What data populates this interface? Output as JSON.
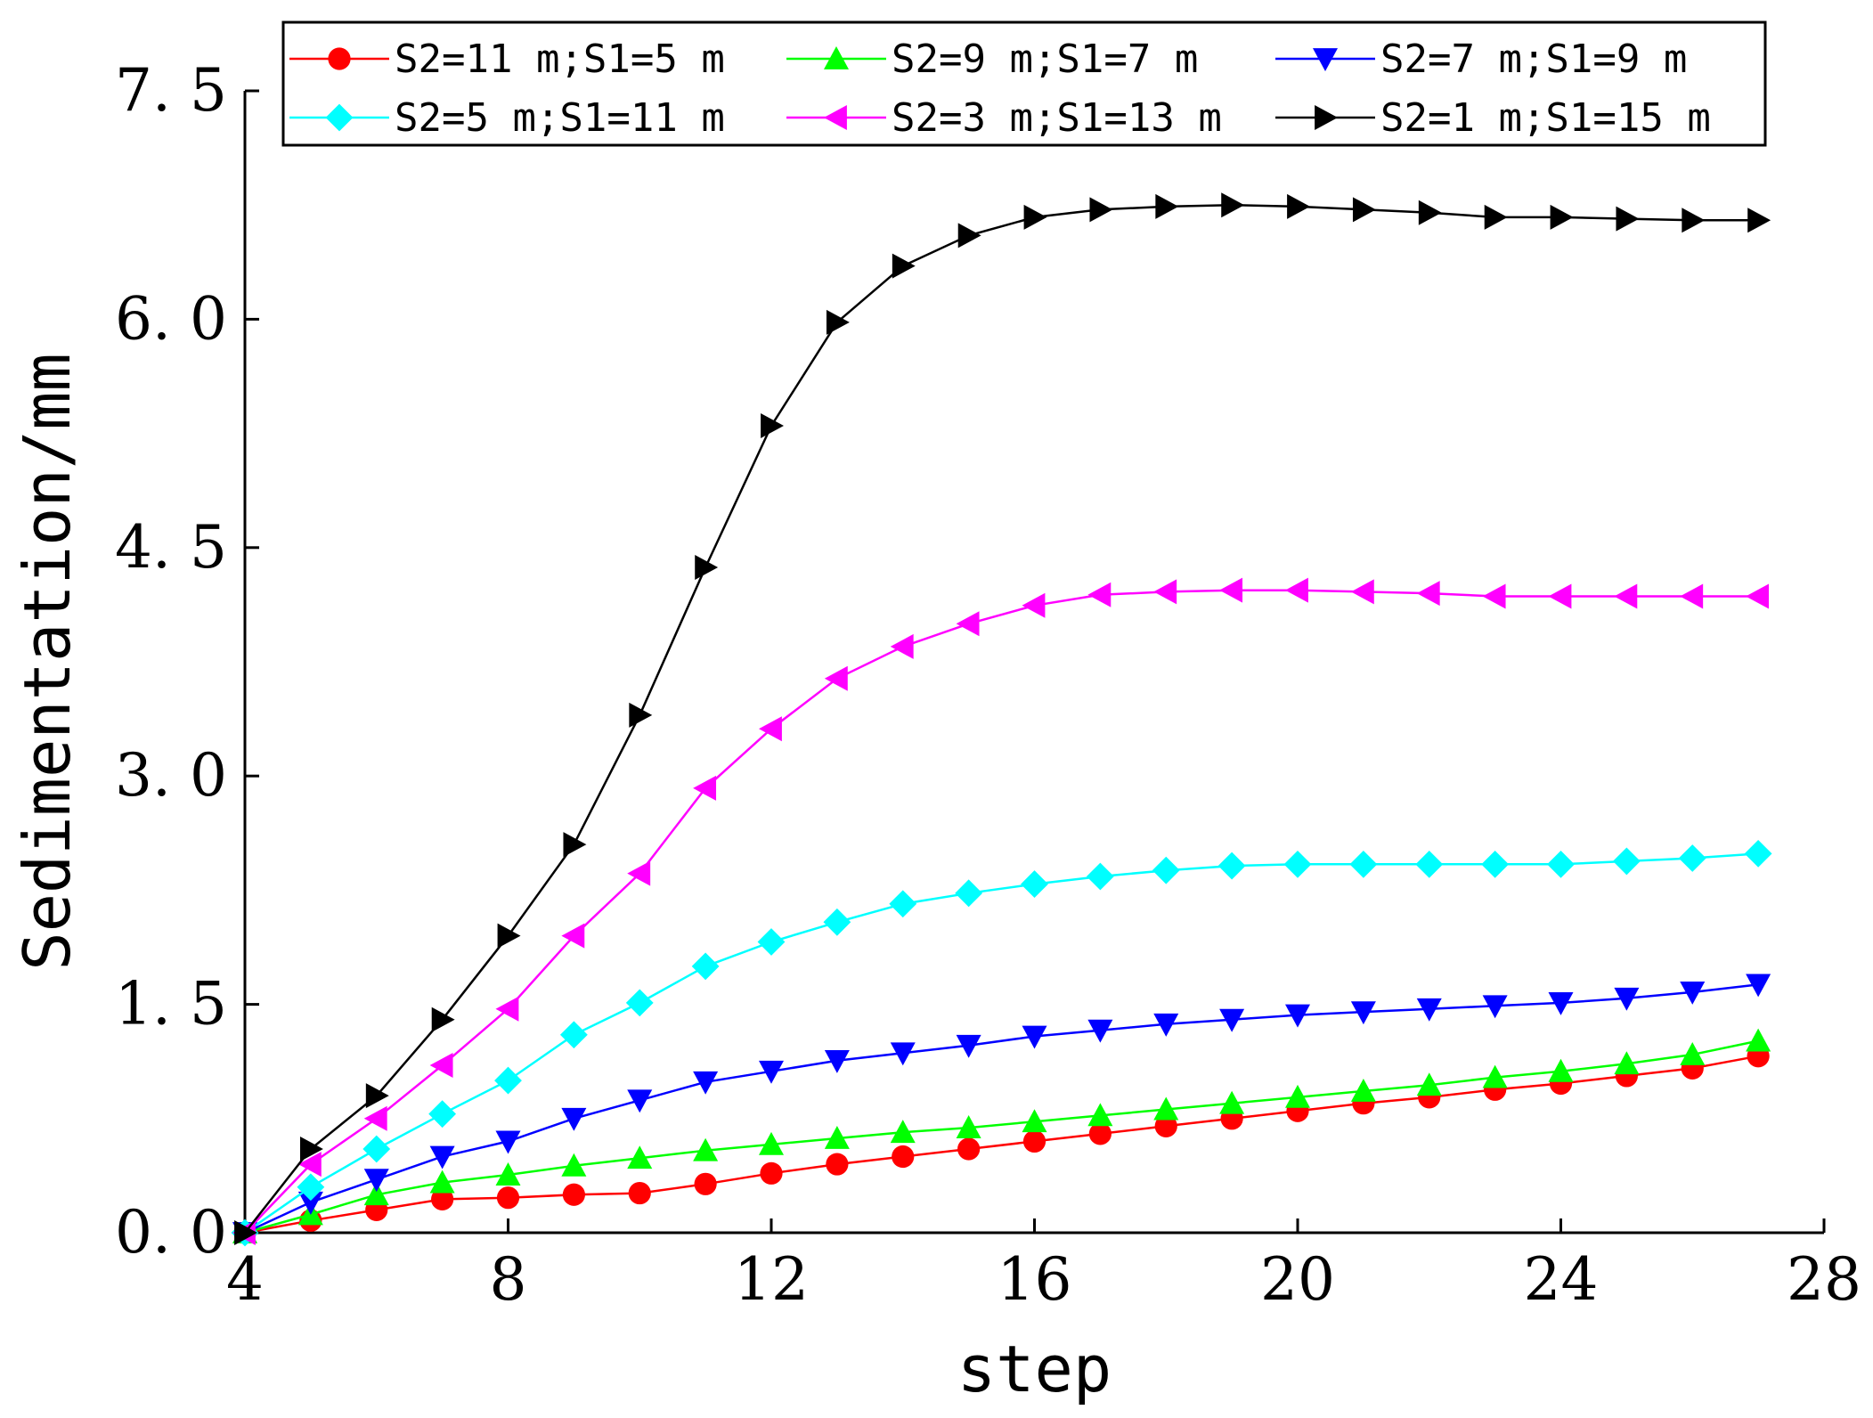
{
  "chart_data": {
    "type": "line",
    "title": "",
    "xlabel": "step",
    "ylabel": "Sedimentation/mm",
    "xlim": [
      4,
      28
    ],
    "ylim": [
      0,
      7.5
    ],
    "xticks": [
      4,
      8,
      12,
      16,
      20,
      24,
      28
    ],
    "yticks": [
      0,
      1.5,
      3,
      4.5,
      6,
      7.5
    ],
    "xtick_labels": [
      "4",
      "8",
      "12",
      "16",
      "20",
      "24",
      "28"
    ],
    "ytick_labels": [
      "0. 0",
      "1. 5",
      "3. 0",
      "4. 5",
      "6. 0",
      "7. 5"
    ],
    "grid": false,
    "legend_position": "top",
    "x": [
      4,
      5,
      6,
      7,
      8,
      9,
      10,
      11,
      12,
      13,
      14,
      15,
      16,
      17,
      18,
      19,
      20,
      21,
      22,
      23,
      24,
      25,
      26,
      27
    ],
    "series": [
      {
        "name": "S2=11 m;S1=5 m",
        "color": "#ff0000",
        "marker": "circle",
        "values": [
          0,
          0.08,
          0.15,
          0.22,
          0.23,
          0.25,
          0.26,
          0.32,
          0.39,
          0.45,
          0.5,
          0.55,
          0.6,
          0.65,
          0.7,
          0.75,
          0.8,
          0.85,
          0.89,
          0.94,
          0.98,
          1.03,
          1.08,
          1.16
        ]
      },
      {
        "name": "S2=9 m;S1=7 m",
        "color": "#00ff00",
        "marker": "triangle-up",
        "values": [
          0,
          0.12,
          0.25,
          0.33,
          0.38,
          0.44,
          0.49,
          0.54,
          0.58,
          0.62,
          0.66,
          0.69,
          0.73,
          0.77,
          0.81,
          0.85,
          0.89,
          0.93,
          0.97,
          1.02,
          1.06,
          1.11,
          1.17,
          1.26
        ]
      },
      {
        "name": "S2=7 m;S1=9 m",
        "color": "#0000ff",
        "marker": "triangle-down",
        "values": [
          0,
          0.2,
          0.35,
          0.5,
          0.6,
          0.75,
          0.87,
          0.99,
          1.06,
          1.13,
          1.18,
          1.23,
          1.29,
          1.33,
          1.37,
          1.4,
          1.43,
          1.45,
          1.47,
          1.49,
          1.51,
          1.54,
          1.58,
          1.63
        ]
      },
      {
        "name": "S2=5 m;S1=11 m",
        "color": "#00ffff",
        "marker": "diamond",
        "values": [
          0,
          0.3,
          0.55,
          0.78,
          1.0,
          1.3,
          1.51,
          1.75,
          1.91,
          2.04,
          2.16,
          2.23,
          2.29,
          2.34,
          2.38,
          2.41,
          2.42,
          2.42,
          2.42,
          2.42,
          2.42,
          2.44,
          2.46,
          2.49
        ]
      },
      {
        "name": "S2=3 m;S1=13 m",
        "color": "#ff00ff",
        "marker": "triangle-left",
        "values": [
          0,
          0.45,
          0.75,
          1.1,
          1.47,
          1.95,
          2.36,
          2.92,
          3.31,
          3.64,
          3.85,
          4.0,
          4.12,
          4.19,
          4.21,
          4.22,
          4.22,
          4.21,
          4.2,
          4.18,
          4.18,
          4.18,
          4.18,
          4.18
        ]
      },
      {
        "name": "S2=1 m;S1=15 m",
        "color": "#000000",
        "marker": "triangle-right",
        "values": [
          0,
          0.55,
          0.9,
          1.4,
          1.95,
          2.55,
          3.4,
          4.37,
          5.3,
          5.98,
          6.35,
          6.55,
          6.67,
          6.72,
          6.74,
          6.75,
          6.74,
          6.72,
          6.7,
          6.67,
          6.67,
          6.66,
          6.65,
          6.65
        ]
      }
    ]
  }
}
